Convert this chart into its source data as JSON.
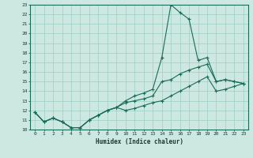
{
  "title": "",
  "xlabel": "Humidex (Indice chaleur)",
  "ylabel": "",
  "background_color": "#cce8e0",
  "grid_color": "#9ecfc4",
  "line_color": "#1a6b5a",
  "x_values": [
    0,
    1,
    2,
    3,
    4,
    5,
    6,
    7,
    8,
    9,
    10,
    11,
    12,
    13,
    14,
    15,
    16,
    17,
    18,
    19,
    20,
    21,
    22,
    23
  ],
  "line1": [
    11.8,
    10.8,
    11.2,
    10.8,
    10.2,
    10.2,
    11.0,
    11.5,
    12.0,
    12.3,
    13.0,
    13.5,
    13.8,
    14.2,
    17.5,
    23.0,
    22.2,
    21.5,
    17.2,
    17.5,
    15.0,
    15.2,
    15.0,
    14.8
  ],
  "line2": [
    11.8,
    10.8,
    11.2,
    10.8,
    10.2,
    10.2,
    11.0,
    11.5,
    12.0,
    12.3,
    12.8,
    13.0,
    13.2,
    13.5,
    15.0,
    15.2,
    15.8,
    16.2,
    16.5,
    16.8,
    15.0,
    15.2,
    15.0,
    14.8
  ],
  "line3": [
    11.8,
    10.8,
    11.2,
    10.8,
    10.2,
    10.2,
    11.0,
    11.5,
    12.0,
    12.3,
    12.0,
    12.2,
    12.5,
    12.8,
    13.0,
    13.5,
    14.0,
    14.5,
    15.0,
    15.5,
    14.0,
    14.2,
    14.5,
    14.8
  ],
  "ylim": [
    10,
    23
  ],
  "xlim": [
    -0.5,
    23.5
  ],
  "yticks": [
    10,
    11,
    12,
    13,
    14,
    15,
    16,
    17,
    18,
    19,
    20,
    21,
    22,
    23
  ],
  "xticks": [
    0,
    1,
    2,
    3,
    4,
    5,
    6,
    7,
    8,
    9,
    10,
    11,
    12,
    13,
    14,
    15,
    16,
    17,
    18,
    19,
    20,
    21,
    22,
    23
  ]
}
